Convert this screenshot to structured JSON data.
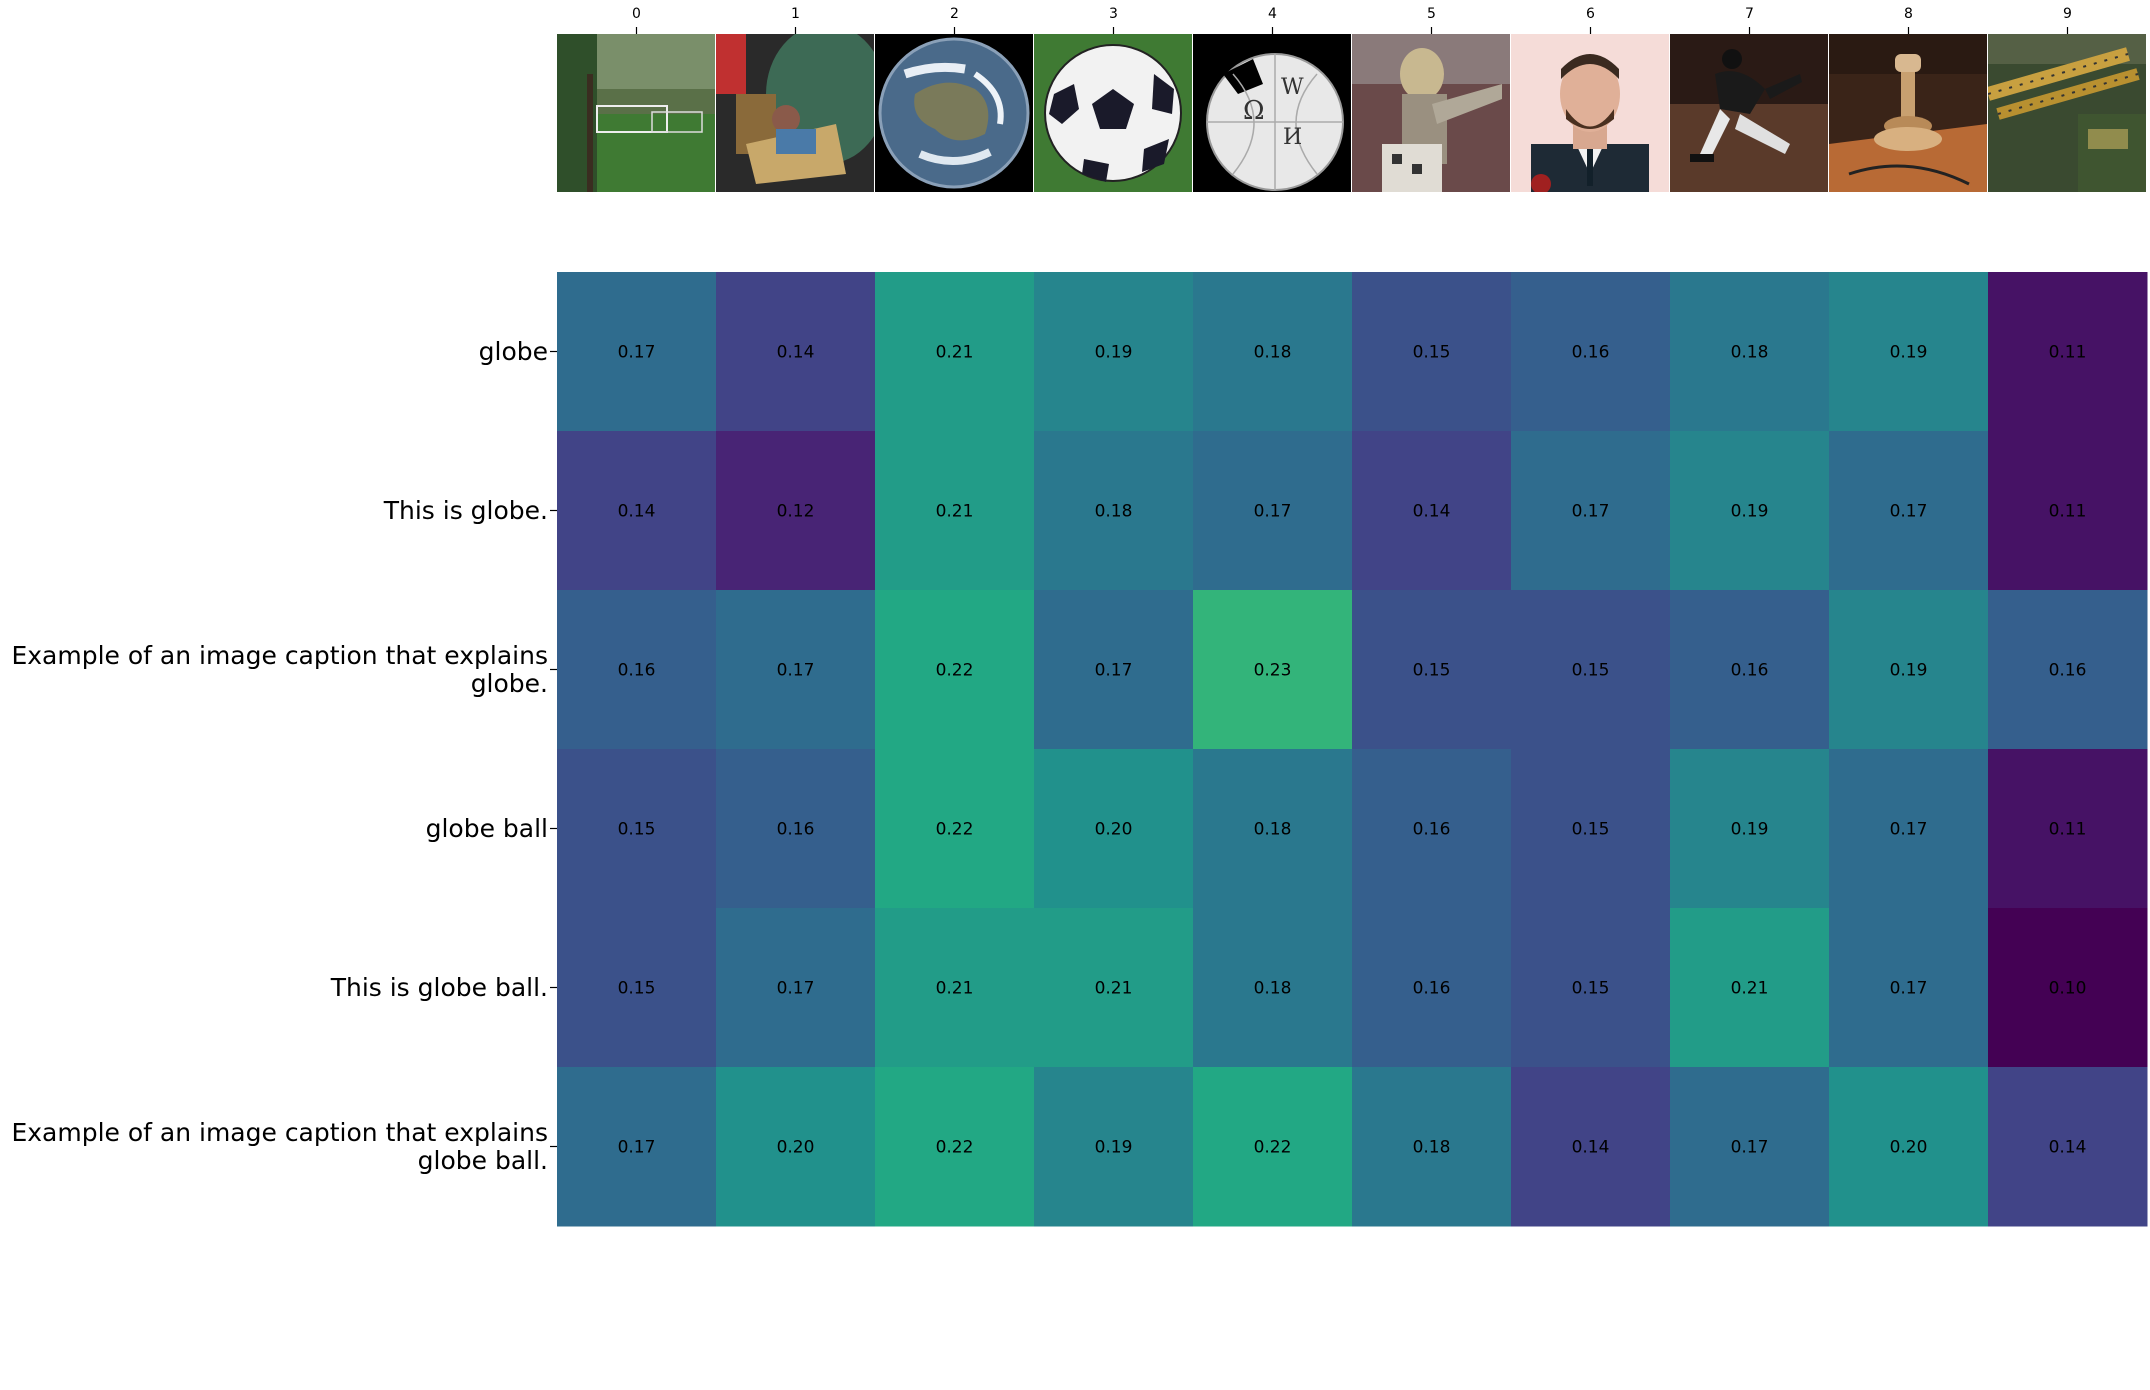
{
  "chart_data": {
    "type": "heatmap",
    "title": "",
    "xlabel": "",
    "ylabel": "",
    "columns": [
      "0",
      "1",
      "2",
      "3",
      "4",
      "5",
      "6",
      "7",
      "8",
      "9"
    ],
    "column_images": [
      "soccer-field-photo",
      "amusement-ride-photo",
      "earth-globe-photo",
      "soccer-ball-photo",
      "wikipedia-globe-logo",
      "knight-armor-photo",
      "man-in-suit-portrait",
      "baseball-pitcher-photo",
      "wooden-lamp-photo",
      "ammunition-belt-photo"
    ],
    "rows": [
      "globe",
      "This is globe.",
      "Example of an image caption that explains\nglobe.",
      "globe ball",
      "This is globe ball.",
      "Example of an image caption that explains\nglobe ball."
    ],
    "values": [
      [
        0.17,
        0.14,
        0.21,
        0.19,
        0.18,
        0.15,
        0.16,
        0.18,
        0.19,
        0.11
      ],
      [
        0.14,
        0.12,
        0.21,
        0.18,
        0.17,
        0.14,
        0.17,
        0.19,
        0.17,
        0.11
      ],
      [
        0.16,
        0.17,
        0.22,
        0.17,
        0.23,
        0.15,
        0.15,
        0.16,
        0.19,
        0.16
      ],
      [
        0.15,
        0.16,
        0.22,
        0.2,
        0.18,
        0.16,
        0.15,
        0.19,
        0.17,
        0.11
      ],
      [
        0.15,
        0.17,
        0.21,
        0.21,
        0.18,
        0.16,
        0.15,
        0.21,
        0.17,
        0.1
      ],
      [
        0.17,
        0.2,
        0.22,
        0.19,
        0.22,
        0.18,
        0.14,
        0.17,
        0.2,
        0.14
      ]
    ],
    "colormap": "viridis",
    "color_range": [
      0.1,
      0.3
    ],
    "grid": false,
    "legend": "none"
  }
}
